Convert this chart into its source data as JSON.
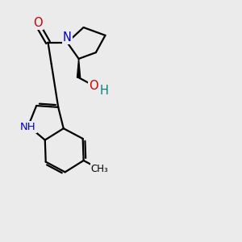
{
  "bg_color": "#ebebeb",
  "bond_color": "#000000",
  "bond_width": 1.6,
  "atom_colors": {
    "N": "#0000cc",
    "O": "#cc0000",
    "H": "#008080"
  },
  "font_size_atom": 9.5,
  "font_size_methyl": 8.5
}
